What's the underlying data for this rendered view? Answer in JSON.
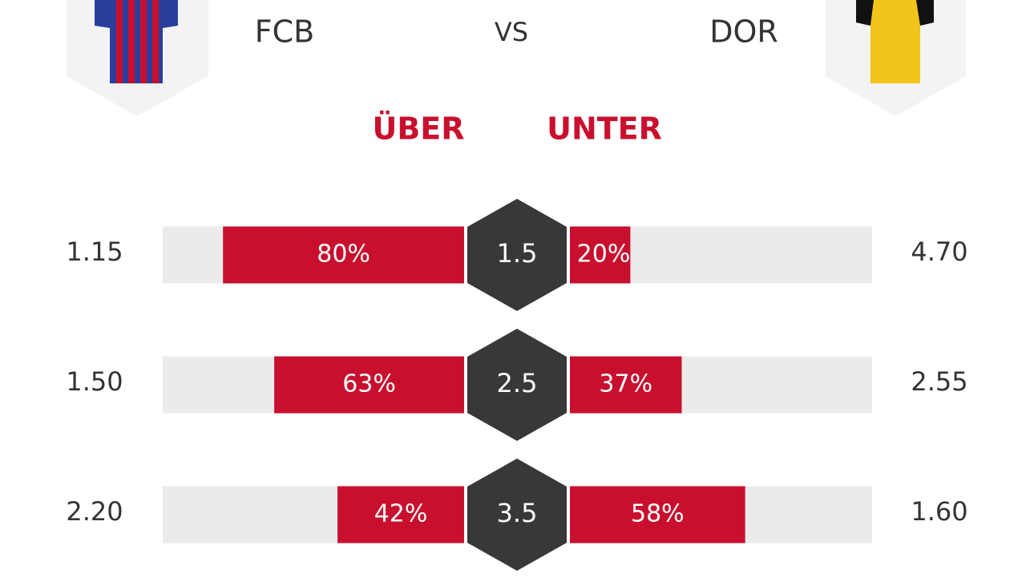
{
  "header": {
    "home": "FCB",
    "vs": "VS",
    "away": "DOR",
    "over": "ÜBER",
    "under": "UNTER"
  },
  "rows": [
    {
      "over_odds": "1.15",
      "line": "1.5",
      "over": {
        "value": 80,
        "label": "80%"
      },
      "under": {
        "value": 20,
        "label": "20%"
      },
      "under_odds": "4.70"
    },
    {
      "over_odds": "1.50",
      "line": "2.5",
      "over": {
        "value": 63,
        "label": "63%"
      },
      "under": {
        "value": 37,
        "label": "37%"
      },
      "under_odds": "2.55"
    },
    {
      "over_odds": "2.20",
      "line": "3.5",
      "over": {
        "value": 42,
        "label": "42%"
      },
      "under": {
        "value": 58,
        "label": "58%"
      },
      "under_odds": "1.60"
    }
  ]
}
